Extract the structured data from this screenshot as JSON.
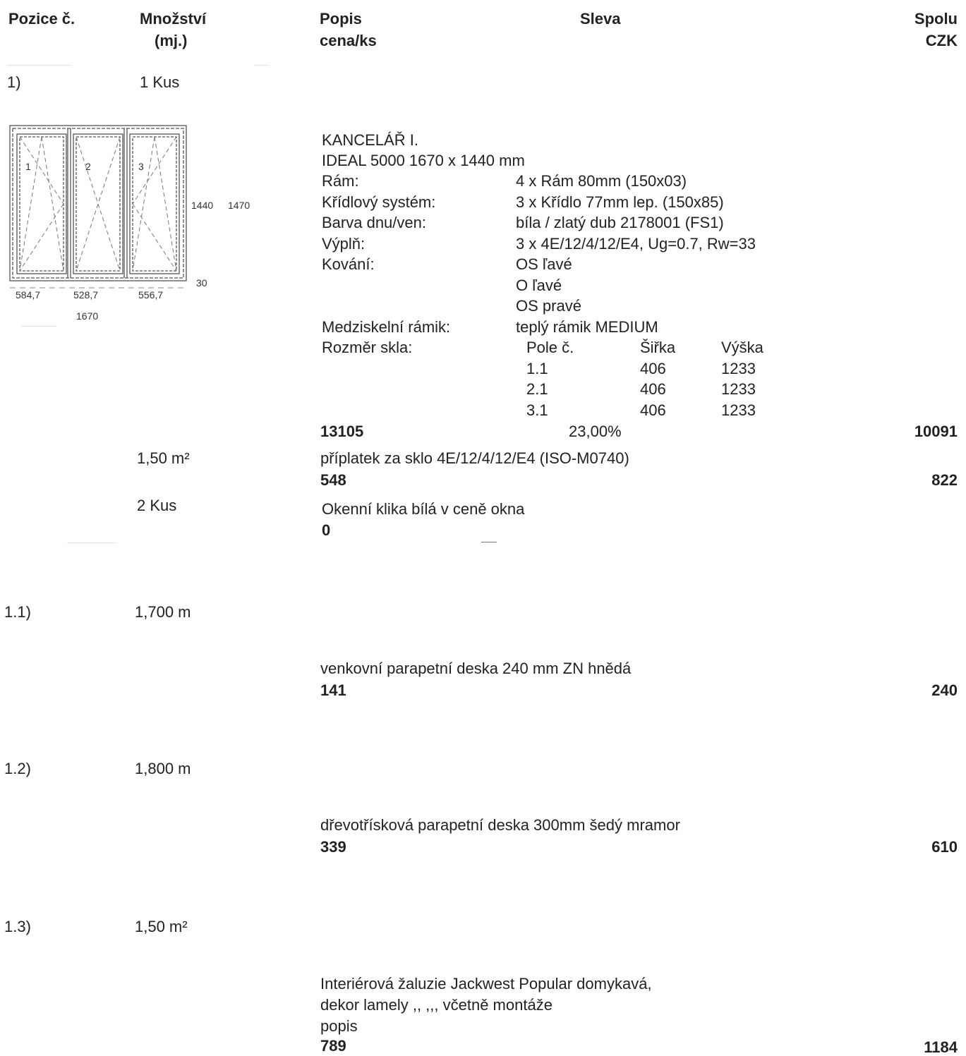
{
  "header": {
    "pozice": "Pozice č.",
    "mnozstvi_1": "Množství",
    "mnozstvi_2": "(mj.)",
    "popis_1": "Popis",
    "popis_2": "cena/ks",
    "sleva": "Sleva",
    "spolu_1": "Spolu",
    "spolu_2": "CZK"
  },
  "item1": {
    "position": "1)",
    "quantity": "1 Kus",
    "drawing": {
      "sash_labels": [
        "1",
        "2",
        "3"
      ],
      "height_inner": "1440",
      "height_outer": "1470",
      "sill": "30",
      "widths": [
        "584,7",
        "528,7",
        "556,7"
      ],
      "total_width": "1670"
    },
    "title": "KANCELÁŘ I.",
    "model": "IDEAL 5000 1670 x 1440 mm",
    "specs": [
      {
        "label": "Rám:",
        "value": "4 x Rám 80mm (150x03)"
      },
      {
        "label": "Křídlový systém:",
        "value": "3 x Křídlo 77mm lep. (150x85)"
      },
      {
        "label": "Barva dnu/ven:",
        "value": "bíla / zlatý dub 2178001 (FS1)"
      },
      {
        "label": "Výplň:",
        "value": "3 x 4E/12/4/12/E4, Ug=0.7, Rw=33"
      },
      {
        "label": "Kování:",
        "value": "OS ľavé"
      },
      {
        "label": "",
        "value": "O ľavé"
      },
      {
        "label": "",
        "value": "OS pravé"
      },
      {
        "label": "Medziskelní rámik:",
        "value": "teplý rámik MEDIUM"
      }
    ],
    "glass": {
      "label": "Rozměr skla:",
      "headers": [
        "Pole č.",
        "Šiřka",
        "Výška"
      ],
      "rows": [
        [
          "1.1",
          "406",
          "1233"
        ],
        [
          "2.1",
          "406",
          "1233"
        ],
        [
          "3.1",
          "406",
          "1233"
        ]
      ]
    },
    "unit_price": "13105",
    "discount": "23,00%",
    "total": "10091",
    "extras": [
      {
        "quantity": "1,50 m²",
        "description": "příplatek za sklo 4E/12/4/12/E4 (ISO-M0740)",
        "unit_price": "548",
        "total": "822"
      },
      {
        "quantity": "2 Kus",
        "description": "Okenní klika bílá v ceně okna",
        "unit_price": "0",
        "total": ""
      }
    ]
  },
  "subitems": [
    {
      "position": "1.1)",
      "quantity": "1,700 m",
      "description": [
        "venkovní parapetní deska  240 mm ZN hnědá"
      ],
      "unit_price": "141",
      "total": "240"
    },
    {
      "position": "1.2)",
      "quantity": "1,800 m",
      "description": [
        "dřevotřísková parapetní deska 300mm šedý mramor"
      ],
      "unit_price": "339",
      "total": "610"
    },
    {
      "position": "1.3)",
      "quantity": "1,50 m²",
      "description": [
        "Interiérová žaluzie Jackwest Popular domykavá,",
        "dekor lamely ,, ,,, včetně montáže",
        "popis"
      ],
      "unit_price": "789",
      "total": "1184"
    }
  ]
}
